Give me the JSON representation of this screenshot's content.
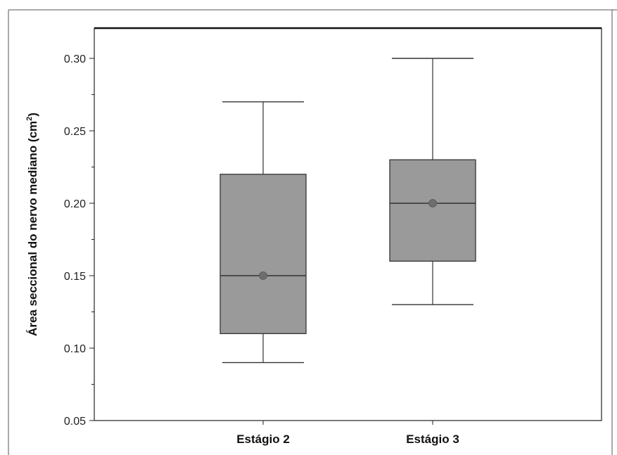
{
  "chart_data": {
    "type": "box",
    "title": "",
    "ylabel": "Área seccional do nervo mediano (cm",
    "ylabel_sup": "2",
    "ylabel_close": ")",
    "xlabel": "",
    "ylim": [
      0.05,
      0.32
    ],
    "yticks": [
      "0.05",
      "0.10",
      "0.15",
      "0.20",
      "0.25",
      "0.30"
    ],
    "categories": [
      "Estágio 2",
      "Estágio 3"
    ],
    "boxes": [
      {
        "category": "Estágio 2",
        "whisker_low": 0.09,
        "q1": 0.11,
        "median": 0.15,
        "q3": 0.22,
        "whisker_high": 0.27,
        "mean": 0.15
      },
      {
        "category": "Estágio 3",
        "whisker_low": 0.13,
        "q1": 0.16,
        "median": 0.2,
        "q3": 0.23,
        "whisker_high": 0.3,
        "mean": 0.2
      }
    ],
    "grid": false,
    "box_color": "#9a9a9a",
    "line_color": "#333333",
    "mean_marker_color": "#6e6e6e"
  }
}
